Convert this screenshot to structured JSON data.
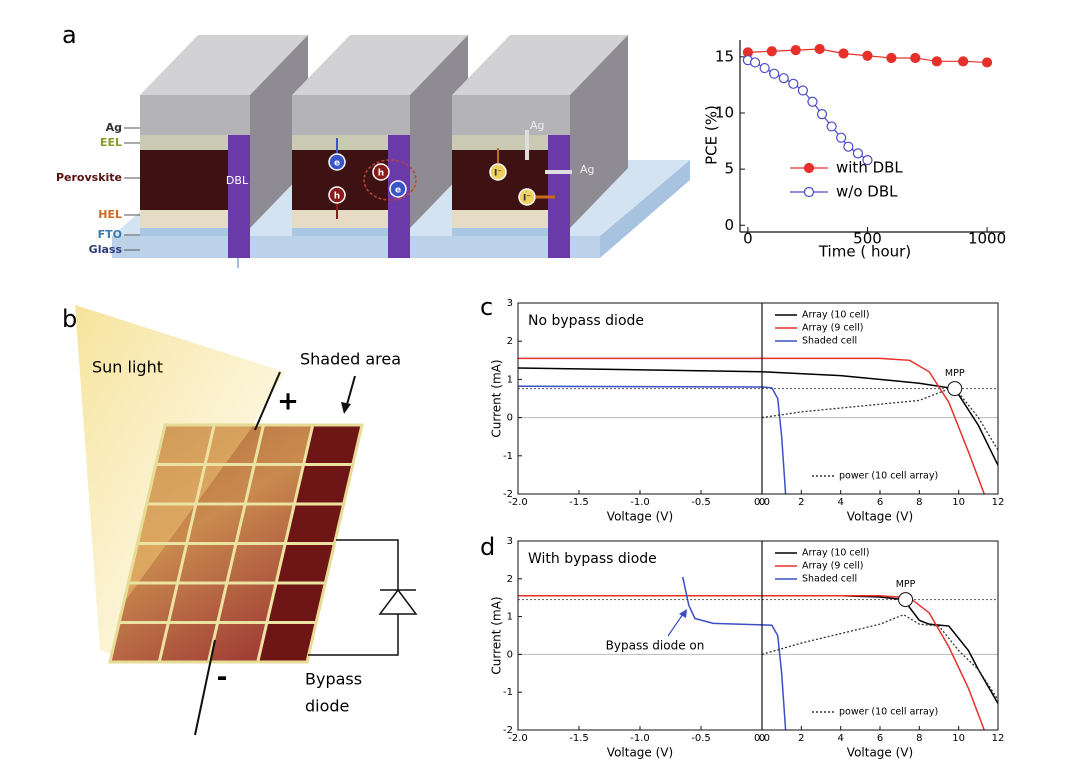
{
  "panel_labels": [
    "a",
    "b",
    "c",
    "d"
  ],
  "diagram_a": {
    "layers": [
      "Ag",
      "EEL",
      "Perovskite",
      "HEL",
      "FTO",
      "Glass"
    ],
    "dbl": "DBL",
    "ag_labels": [
      "Ag",
      "Ag"
    ],
    "carriers": [
      "e",
      "h",
      "h",
      "e",
      "I⁻",
      "I⁻"
    ]
  },
  "diagram_b": {
    "sun": "Sun light",
    "shaded": "Shaded area",
    "plus": "+",
    "minus": "-",
    "diode": [
      "Bypass",
      "diode"
    ]
  },
  "chart_data": [
    {
      "type": "line",
      "ylabel": "PCE (%)",
      "xlabel": "Time ( hour)",
      "xlim": [
        -33,
        1075
      ],
      "ylim": [
        -0.6,
        16.5
      ],
      "xticks": [
        0,
        500,
        1000
      ],
      "yticks": [
        0,
        5,
        10,
        15
      ],
      "legend": "right",
      "series": [
        {
          "name": "with DBL",
          "color": "#e8302b",
          "marker": "filled",
          "x": [
            0,
            100,
            200,
            300,
            400,
            500,
            600,
            700,
            790,
            900,
            1000
          ],
          "values": [
            15.4,
            15.5,
            15.6,
            15.7,
            15.3,
            15.1,
            14.9,
            14.9,
            14.6,
            14.6,
            14.5
          ]
        },
        {
          "name": "w/o DBL",
          "color": "#4a4ac8",
          "marker": "open",
          "x": [
            0,
            30,
            70,
            110,
            150,
            190,
            230,
            270,
            310,
            350,
            390,
            420,
            460,
            500
          ],
          "values": [
            14.7,
            14.5,
            14.0,
            13.5,
            13.1,
            12.6,
            12.0,
            11.0,
            9.9,
            8.8,
            7.8,
            7.0,
            6.4,
            5.8
          ]
        }
      ]
    },
    {
      "type": "line",
      "annotation": "No bypass diode",
      "ylabel": "Current (mA)",
      "xlabel": "Voltage (V)",
      "xlim": [
        -2,
        0
      ],
      "xticks": [
        {
          "value": -2,
          "label": "-2.0"
        },
        {
          "value": -1.5,
          "label": "-1.5"
        },
        {
          "value": -1,
          "label": "-1.0"
        },
        {
          "value": -0.5,
          "label": "-0.5"
        },
        {
          "value": 0,
          "label": "0.0"
        }
      ],
      "x2lim": [
        0,
        12
      ],
      "x2ticks": [
        0,
        2,
        4,
        6,
        8,
        10,
        12
      ],
      "ylim": [
        -2,
        3
      ],
      "yticks": [
        -2,
        -1,
        0,
        1,
        2,
        3
      ],
      "zero_line": true,
      "mpp_level": 0.76,
      "mpp": {
        "label": "MPP",
        "x": 9.8,
        "y": 0.76
      },
      "legend": "upper right",
      "series": [
        {
          "name": "Array (10 cell)",
          "color": "#000000",
          "x": [
            -2,
            0,
            4,
            8,
            9.5,
            10,
            11,
            12
          ],
          "values": [
            1.3,
            1.2,
            1.1,
            0.9,
            0.78,
            0.6,
            -0.2,
            -1.25
          ]
        },
        {
          "name": "Array (9 cell)",
          "color": "#e8302b",
          "x": [
            -2,
            0,
            6,
            7.5,
            8.5,
            9.5,
            10.5,
            11.3
          ],
          "values": [
            1.55,
            1.55,
            1.55,
            1.5,
            1.2,
            0.4,
            -0.9,
            -2
          ]
        },
        {
          "name": "Shaded cell",
          "color": "#3a4fc4",
          "x": [
            -2,
            0,
            0.5,
            0.8,
            1.0,
            1.2
          ],
          "values": [
            0.82,
            0.8,
            0.78,
            0.5,
            -0.5,
            -2
          ]
        },
        {
          "name": "power (10 cell array)",
          "color": "#333333",
          "dash": true,
          "x": [
            0,
            2,
            4,
            6,
            8,
            9.5,
            10,
            11,
            12
          ],
          "values": [
            0,
            0.15,
            0.25,
            0.35,
            0.45,
            0.75,
            0.65,
            0,
            -0.85
          ]
        }
      ]
    },
    {
      "type": "line",
      "annotation": "With bypass diode",
      "callout": "Bypass diode on",
      "ylabel": "Current (mA)",
      "xlabel": "Voltage (V)",
      "xlim": [
        -2,
        0
      ],
      "xticks": [
        {
          "value": -2,
          "label": "-2.0"
        },
        {
          "value": -1.5,
          "label": "-1.5"
        },
        {
          "value": -1,
          "label": "-1.0"
        },
        {
          "value": -0.5,
          "label": "-0.5"
        },
        {
          "value": 0,
          "label": "0.0"
        }
      ],
      "x2lim": [
        0,
        12
      ],
      "x2ticks": [
        0,
        2,
        4,
        6,
        8,
        10,
        12
      ],
      "ylim": [
        -2,
        3
      ],
      "yticks": [
        -2,
        -1,
        0,
        1,
        2,
        3
      ],
      "zero_line": true,
      "mpp_level": 1.45,
      "mpp": {
        "label": "MPP",
        "x": 7.3,
        "y": 1.45
      },
      "legend": "upper right",
      "series": [
        {
          "name": "Array (10 cell)",
          "color": "#000000",
          "x": [
            -2,
            0,
            2,
            4,
            6,
            7.2,
            8,
            8.5,
            9.5,
            10.5,
            11,
            12
          ],
          "values": [
            1.55,
            1.55,
            1.55,
            1.55,
            1.52,
            1.45,
            0.9,
            0.8,
            0.75,
            0.1,
            -0.4,
            -1.3
          ]
        },
        {
          "name": "Array (9 cell)",
          "color": "#e8302b",
          "x": [
            -2,
            0,
            6,
            7.5,
            8.5,
            9.5,
            10.5,
            11.3
          ],
          "values": [
            1.55,
            1.55,
            1.55,
            1.5,
            1.1,
            0.2,
            -0.9,
            -2
          ]
        },
        {
          "name": "Shaded cell",
          "color": "#3a4fc4",
          "x": [
            -0.65,
            -0.6,
            -0.55,
            -0.4,
            -0.2,
            0,
            0.5,
            0.8,
            1.0,
            1.2
          ],
          "values": [
            2.05,
            1.3,
            0.95,
            0.82,
            0.8,
            0.78,
            0.77,
            0.5,
            -0.5,
            -2
          ]
        },
        {
          "name": "power (10 cell array)",
          "color": "#333333",
          "dash": true,
          "x": [
            0,
            2,
            4,
            6,
            7.2,
            8,
            9,
            10,
            11,
            12
          ],
          "values": [
            0,
            0.3,
            0.55,
            0.8,
            1.05,
            0.8,
            0.75,
            0.1,
            -0.4,
            -1.2
          ]
        }
      ]
    }
  ]
}
